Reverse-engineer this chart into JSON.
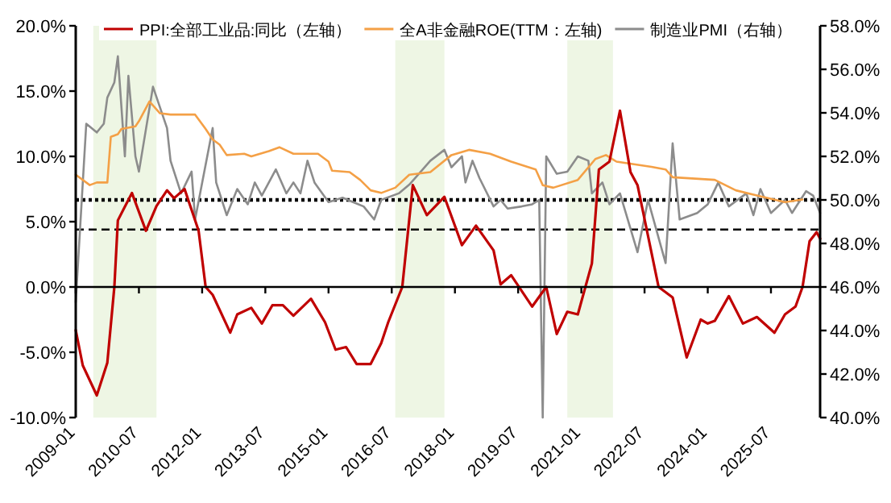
{
  "chart_data": {
    "type": "line",
    "xlim": [
      "2009-01",
      "2026-09"
    ],
    "xticks": [
      "2009-01",
      "2010-07",
      "2012-01",
      "2013-07",
      "2015-01",
      "2016-07",
      "2018-01",
      "2019-07",
      "2021-01",
      "2022-07",
      "2024-01",
      "2025-07"
    ],
    "ylim": [
      -10,
      20
    ],
    "yticks": [
      {
        "value": -10,
        "label": "-10.0%"
      },
      {
        "value": -5,
        "label": "-5.0%"
      },
      {
        "value": 0,
        "label": "0.0%"
      },
      {
        "value": 5,
        "label": "5.0%"
      },
      {
        "value": 10,
        "label": "10.0%"
      },
      {
        "value": 15,
        "label": "15.0%"
      },
      {
        "value": 20,
        "label": "20.0%"
      }
    ],
    "y2lim": [
      40,
      58
    ],
    "y2ticks": [
      {
        "value": 40,
        "label": "40.0%"
      },
      {
        "value": 42,
        "label": "42.0%"
      },
      {
        "value": 44,
        "label": "44.0%"
      },
      {
        "value": 46,
        "label": "46.0%"
      },
      {
        "value": 48,
        "label": "48.0%"
      },
      {
        "value": 50,
        "label": "50.0%"
      },
      {
        "value": 52,
        "label": "52.0%"
      },
      {
        "value": 54,
        "label": "54.0%"
      },
      {
        "value": 56,
        "label": "56.0%"
      },
      {
        "value": 58,
        "label": "58.0%"
      }
    ],
    "legend": "top",
    "bands": [
      {
        "axis": "x",
        "from": "2009-06",
        "to": "2010-12",
        "color": "#eef6e4"
      },
      {
        "axis": "x",
        "from": "2016-08",
        "to": "2017-10",
        "color": "#eef6e4"
      },
      {
        "axis": "x",
        "from": "2020-09",
        "to": "2021-10",
        "color": "#eef6e4"
      }
    ],
    "ref_lines": [
      {
        "axis": "y2",
        "value": 50,
        "color": "#000000",
        "line_style": "dotted"
      },
      {
        "axis": "y",
        "value": 4.4,
        "color": "#000000",
        "line_style": "dashed"
      }
    ],
    "series": [
      {
        "name": "PPI:全部工业品:同比（左轴）",
        "color": "#c00000",
        "axis": "y",
        "x": [
          "2009-01",
          "2009-03",
          "2009-07",
          "2009-10",
          "2009-12",
          "2010-01",
          "2010-05",
          "2010-09",
          "2010-12",
          "2011-03",
          "2011-05",
          "2011-08",
          "2011-12",
          "2012-02",
          "2012-04",
          "2012-09",
          "2012-11",
          "2013-03",
          "2013-06",
          "2013-09",
          "2013-12",
          "2014-03",
          "2014-08",
          "2014-12",
          "2015-03",
          "2015-06",
          "2015-09",
          "2016-01",
          "2016-04",
          "2016-06",
          "2016-10",
          "2017-01",
          "2017-05",
          "2017-10",
          "2018-03",
          "2018-07",
          "2018-12",
          "2019-02",
          "2019-05",
          "2019-11",
          "2020-03",
          "2020-06",
          "2020-09",
          "2020-12",
          "2021-04",
          "2021-06",
          "2021-09",
          "2021-12",
          "2022-03",
          "2022-05",
          "2022-11",
          "2023-03",
          "2023-07",
          "2023-11",
          "2024-01",
          "2024-03",
          "2024-07",
          "2024-11",
          "2025-03",
          "2025-08",
          "2025-11",
          "2026-02",
          "2026-04",
          "2026-06",
          "2026-08",
          "2026-09"
        ],
        "values": [
          -3.3,
          -6.0,
          -8.3,
          -5.8,
          0.0,
          5.1,
          7.2,
          4.3,
          6.2,
          7.4,
          6.8,
          7.5,
          4.3,
          0.0,
          -0.6,
          -3.5,
          -2.1,
          -1.6,
          -2.8,
          -1.4,
          -1.4,
          -2.2,
          -0.9,
          -2.7,
          -4.8,
          -4.6,
          -5.9,
          -5.9,
          -4.3,
          -2.7,
          0.0,
          7.8,
          5.5,
          6.9,
          3.2,
          4.7,
          2.8,
          0.2,
          0.9,
          -1.5,
          0.0,
          -3.6,
          -1.9,
          -2.1,
          1.8,
          9.0,
          9.6,
          13.5,
          8.8,
          7.8,
          0.0,
          -0.8,
          -5.4,
          -2.5,
          -2.8,
          -2.6,
          -0.7,
          -2.8,
          -2.3,
          -3.5,
          -2.1,
          -1.5,
          0.0,
          3.5,
          4.2,
          3.7
        ]
      },
      {
        "name": "全A非金融ROE(TTM：左轴)",
        "color": "#f4a046",
        "axis": "y",
        "x": [
          "2009-01",
          "2009-05",
          "2009-07",
          "2009-10",
          "2009-11",
          "2010-01",
          "2010-02",
          "2010-06",
          "2010-07",
          "2010-10",
          "2011-01",
          "2011-04",
          "2011-11",
          "2012-02",
          "2012-04",
          "2012-06",
          "2012-08",
          "2013-01",
          "2013-03",
          "2013-08",
          "2013-11",
          "2014-03",
          "2014-10",
          "2015-01",
          "2015-02",
          "2015-07",
          "2015-10",
          "2016-01",
          "2016-04",
          "2016-08",
          "2016-12",
          "2017-06",
          "2017-12",
          "2018-05",
          "2018-11",
          "2019-05",
          "2019-12",
          "2020-02",
          "2020-05",
          "2020-12",
          "2021-05",
          "2021-08",
          "2021-11",
          "2022-09",
          "2023-01",
          "2023-03",
          "2024-03",
          "2024-09",
          "2025-03",
          "2025-11",
          "2026-04"
        ],
        "values": [
          8.6,
          7.8,
          8.0,
          8.0,
          11.5,
          11.7,
          12.1,
          12.3,
          12.7,
          14.2,
          13.3,
          13.2,
          13.2,
          12.1,
          11.3,
          10.9,
          10.1,
          10.2,
          10.0,
          10.4,
          10.7,
          10.2,
          10.2,
          9.6,
          8.9,
          8.8,
          8.2,
          7.4,
          7.2,
          7.6,
          8.6,
          8.8,
          10.1,
          10.5,
          10.2,
          9.6,
          9.0,
          7.8,
          7.6,
          8.2,
          9.8,
          10.1,
          9.6,
          9.2,
          9.0,
          8.4,
          8.2,
          7.4,
          7.0,
          6.5,
          6.7
        ]
      },
      {
        "name": "制造业PMI（右轴）",
        "color": "#8c8c8c",
        "axis": "y2",
        "x": [
          "2009-01",
          "2009-04",
          "2009-07",
          "2009-09",
          "2009-10",
          "2009-12",
          "2010-01",
          "2010-03",
          "2010-04",
          "2010-06",
          "2010-07",
          "2010-11",
          "2011-03",
          "2011-04",
          "2011-07",
          "2011-10",
          "2011-11",
          "2012-04",
          "2012-05",
          "2012-08",
          "2012-11",
          "2013-02",
          "2013-04",
          "2013-06",
          "2013-10",
          "2014-01",
          "2014-03",
          "2014-05",
          "2014-07",
          "2014-09",
          "2015-01",
          "2015-05",
          "2015-08",
          "2015-11",
          "2016-02",
          "2016-04",
          "2016-09",
          "2016-12",
          "2017-06",
          "2017-10",
          "2017-12",
          "2018-03",
          "2018-04",
          "2018-06",
          "2018-08",
          "2018-12",
          "2019-02",
          "2019-04",
          "2019-08",
          "2019-11",
          "2020-01",
          "2020-02",
          "2020-03",
          "2020-06",
          "2020-09",
          "2020-12",
          "2021-03",
          "2021-04",
          "2021-07",
          "2021-09",
          "2021-12",
          "2022-05",
          "2022-08",
          "2023-01",
          "2023-03",
          "2023-05",
          "2023-10",
          "2024-01",
          "2024-04",
          "2024-07",
          "2024-12",
          "2025-02",
          "2025-04",
          "2025-07",
          "2025-11",
          "2026-01",
          "2026-05",
          "2026-07",
          "2026-09"
        ],
        "values": [
          45.3,
          53.5,
          53.1,
          53.5,
          54.7,
          55.4,
          56.6,
          52.0,
          55.7,
          52.0,
          51.3,
          55.2,
          53.3,
          51.8,
          50.3,
          51.3,
          49.1,
          53.3,
          50.8,
          49.3,
          50.5,
          49.8,
          50.8,
          50.2,
          51.4,
          50.3,
          50.8,
          50.3,
          51.8,
          50.8,
          49.9,
          50.1,
          49.9,
          49.7,
          49.1,
          50.0,
          50.3,
          50.7,
          51.8,
          52.3,
          51.5,
          52.0,
          50.8,
          51.8,
          51.0,
          49.7,
          50.0,
          49.6,
          49.7,
          49.8,
          50.0,
          40.0,
          52.0,
          51.2,
          51.3,
          52.0,
          51.8,
          50.3,
          50.8,
          49.8,
          50.3,
          47.6,
          50.0,
          47.1,
          52.6,
          49.1,
          49.4,
          49.8,
          50.8,
          49.7,
          50.3,
          49.3,
          50.5,
          49.4,
          50.0,
          49.4,
          50.4,
          50.2,
          49.4
        ]
      }
    ]
  }
}
